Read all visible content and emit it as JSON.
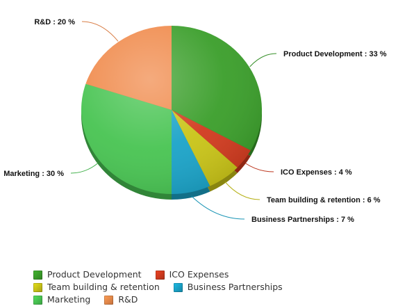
{
  "chart_data": {
    "type": "pie",
    "title": "",
    "unit": "%",
    "slices": [
      {
        "name": "Product Development",
        "value": 33,
        "label": "Product Development : 33 %",
        "color": "#3a9e2a",
        "side": "right"
      },
      {
        "name": "ICO Expenses",
        "value": 4,
        "label": "ICO Expenses : 4 %",
        "color": "#d13a1e",
        "side": "right"
      },
      {
        "name": "Team building & retention",
        "value": 6,
        "label": "Team building & retention : 6 %",
        "color": "#c9c417",
        "side": "right"
      },
      {
        "name": "Business Partnerships",
        "value": 7,
        "label": "Business Partnerships : 7 %",
        "color": "#1aa3c8",
        "side": "right"
      },
      {
        "name": "Marketing",
        "value": 30,
        "label": "Marketing : 30 %",
        "color": "#48c452",
        "side": "left"
      },
      {
        "name": "R&D",
        "value": 20,
        "label": "R&D : 20 %",
        "color": "#f08a4b",
        "side": "left"
      }
    ],
    "legend_position": "bottom",
    "legend": [
      "Product Development",
      "ICO Expenses",
      "Team building & retention",
      "Business Partnerships",
      "Marketing",
      "R&D"
    ]
  }
}
